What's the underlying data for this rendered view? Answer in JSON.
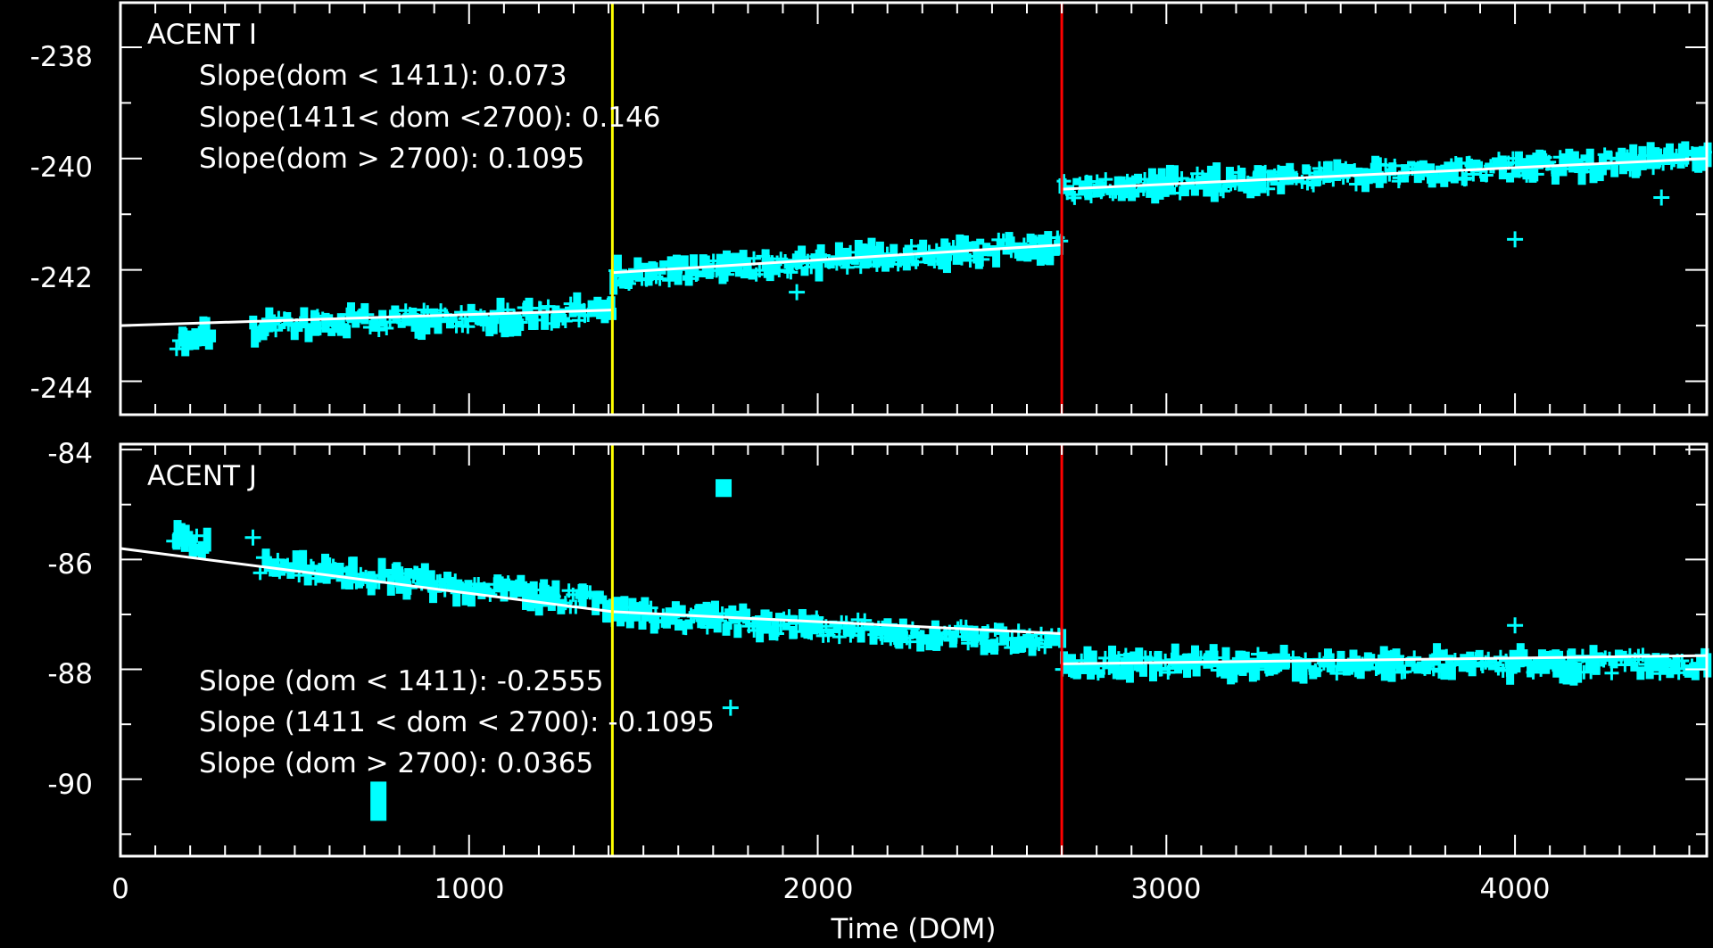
{
  "colors": {
    "background": "#000000",
    "axes": "#ffffff",
    "data": "#00ffff",
    "fit": "#ffffff",
    "boundary_1": "#ffff00",
    "boundary_2": "#ff0000"
  },
  "xlabel": "Time (DOM)",
  "x_ticks": [
    "0",
    "1000",
    "2000",
    "3000",
    "4000"
  ],
  "chart_data": [
    {
      "type": "scatter",
      "title": "ACENT I",
      "xlabel": "Time (DOM)",
      "ylabel": "",
      "xlim": [
        0,
        4550
      ],
      "ylim": [
        -244.6,
        -237.2
      ],
      "y_ticks": [
        "-238",
        "-240",
        "-242",
        "-244"
      ],
      "vlines": [
        1411,
        2700
      ],
      "grid": false,
      "slope_labels": [
        "Slope(dom < 1411): 0.073",
        "Slope(1411< dom <2700): 0.146",
        "Slope(dom > 2700): 0.1095"
      ],
      "fit_lines": [
        {
          "x": [
            0,
            1411
          ],
          "y": [
            -243.0,
            -242.72
          ]
        },
        {
          "x": [
            1411,
            2700
          ],
          "y": [
            -242.05,
            -241.55
          ]
        },
        {
          "x": [
            2700,
            4550
          ],
          "y": [
            -240.55,
            -240.0
          ]
        }
      ],
      "clusters": [
        {
          "x": [
            160,
            260
          ],
          "y": [
            -243.35,
            -243.1
          ]
        },
        {
          "x": [
            380,
            420
          ],
          "y": [
            -243.1,
            -243.1
          ]
        },
        {
          "x": [
            420,
            1411
          ],
          "y": [
            -243.0,
            -242.75
          ]
        },
        {
          "x": [
            1411,
            2700
          ],
          "y": [
            -242.1,
            -241.55
          ]
        },
        {
          "x": [
            2700,
            4550
          ],
          "y": [
            -240.55,
            -240.0
          ]
        }
      ],
      "outliers": [
        {
          "x": 1940,
          "y": -242.4
        },
        {
          "x": 3860,
          "y": -240.35
        },
        {
          "x": 4000,
          "y": -241.45
        },
        {
          "x": 4420,
          "y": -240.7
        }
      ]
    },
    {
      "type": "scatter",
      "title": "ACENT J",
      "xlabel": "Time (DOM)",
      "ylabel": "",
      "xlim": [
        0,
        4550
      ],
      "ylim": [
        -91.4,
        -83.9
      ],
      "y_ticks": [
        "-84",
        "-86",
        "-88",
        "-90"
      ],
      "vlines": [
        1411,
        2700
      ],
      "grid": false,
      "slope_labels": [
        "Slope (dom < 1411): -0.2555",
        "Slope (1411 < dom < 2700): -0.1095",
        "Slope (dom > 2700): 0.0365"
      ],
      "fit_lines": [
        {
          "x": [
            0,
            1411
          ],
          "y": [
            -85.8,
            -86.95
          ]
        },
        {
          "x": [
            1411,
            2700
          ],
          "y": [
            -86.95,
            -87.35
          ]
        },
        {
          "x": [
            2700,
            4550
          ],
          "y": [
            -87.9,
            -87.75
          ]
        }
      ],
      "clusters": [
        {
          "x": [
            150,
            250
          ],
          "y": [
            -85.6,
            -85.7
          ]
        },
        {
          "x": [
            400,
            1411
          ],
          "y": [
            -86.1,
            -86.8
          ]
        },
        {
          "x": [
            1411,
            2700
          ],
          "y": [
            -87.0,
            -87.5
          ]
        },
        {
          "x": [
            2700,
            4550
          ],
          "y": [
            -87.9,
            -87.9
          ]
        }
      ],
      "outliers": [
        {
          "x": 1730,
          "y": -84.7
        },
        {
          "x": 1750,
          "y": -88.7
        },
        {
          "x": 740,
          "y": -90.4
        },
        {
          "x": 4000,
          "y": -87.2
        },
        {
          "x": 380,
          "y": -85.6
        }
      ]
    }
  ]
}
